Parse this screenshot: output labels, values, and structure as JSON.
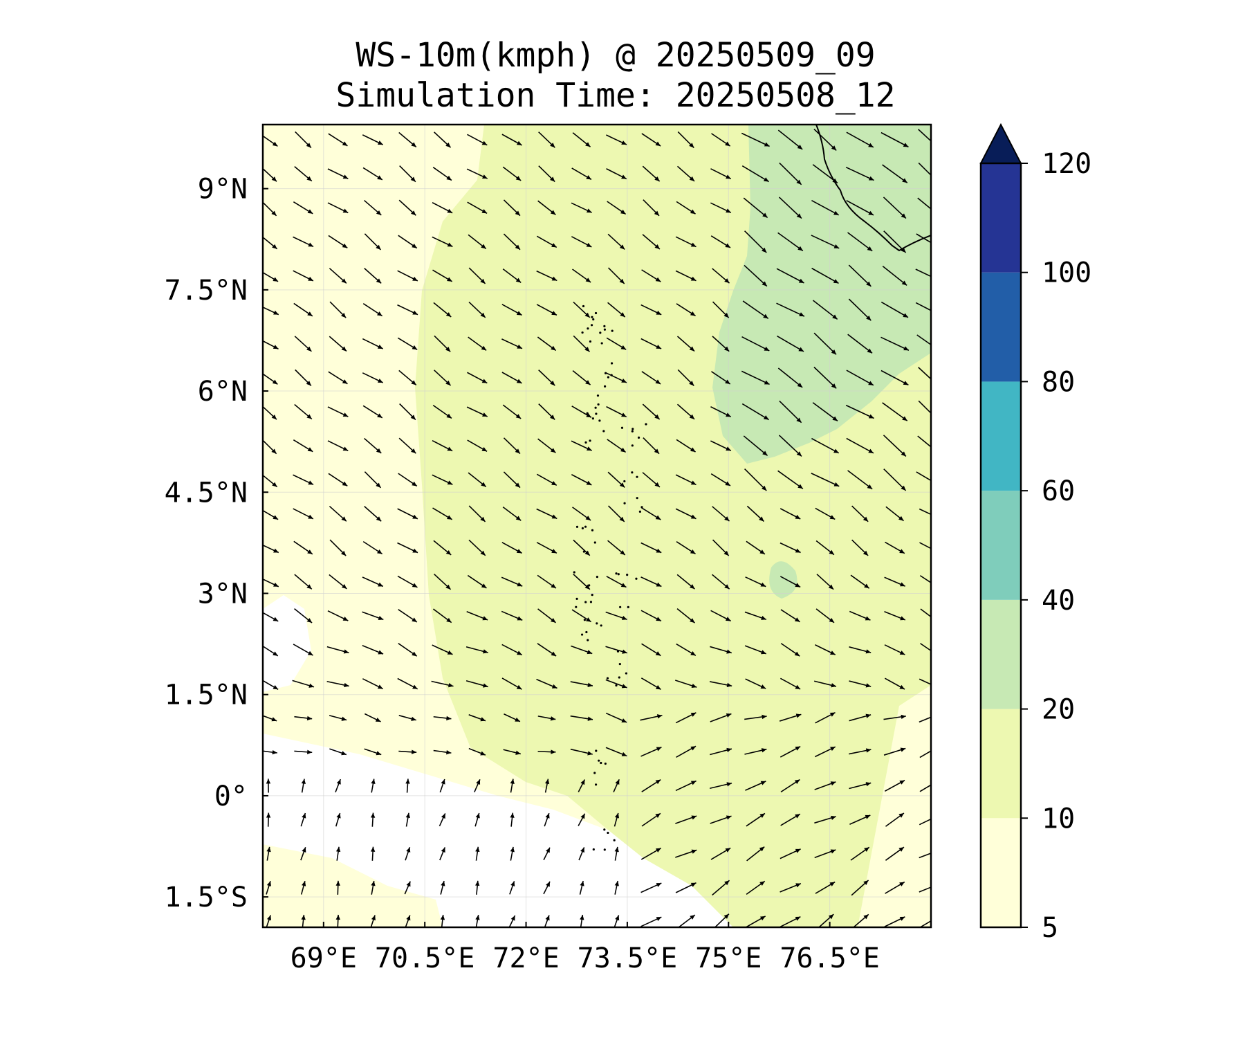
{
  "title": "WS-10m(kmph) @ 20250509_09",
  "subtitle": "Simulation Time: 20250508_12",
  "lat_labels": [
    "9°N",
    "7.5°N",
    "6°N",
    "4.5°N",
    "3°N",
    "1.5°N",
    "0°",
    "1.5°S"
  ],
  "lon_labels": [
    "69°E",
    "70.5°E",
    "72°E",
    "73.5°E",
    "75°E",
    "76.5°E"
  ],
  "colorbar": {
    "levels": [
      5,
      10,
      20,
      40,
      60,
      80,
      100,
      120
    ],
    "tick_labels": [
      "5",
      "10",
      "20",
      "40",
      "60",
      "80",
      "100",
      "120"
    ],
    "colors": [
      "#ffffd9",
      "#edf8b1",
      "#c7e9b4",
      "#7fcdbb",
      "#41b6c4",
      "#225ea8",
      "#253494",
      "#081d58"
    ],
    "extend": "max"
  },
  "map": {
    "type": "filled-contour-with-wind-vectors",
    "lon_range": [
      68.1,
      78.0
    ],
    "lat_range": [
      -1.95,
      9.95
    ],
    "background_color": "#edf8b1",
    "low_speed_color": "#ffffff",
    "calm_color": "#ffffd9",
    "strong_color": "#c7e9b4",
    "grid": true,
    "coastline_color": "#000000",
    "vector_color": "#000000"
  }
}
